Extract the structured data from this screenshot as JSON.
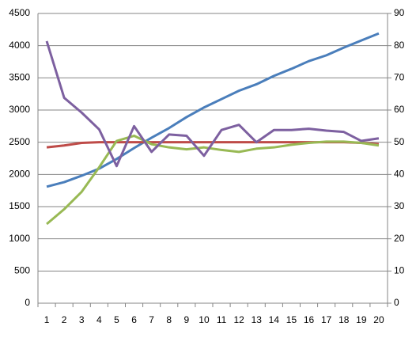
{
  "chart_data": {
    "type": "line",
    "categories": [
      1,
      2,
      3,
      4,
      5,
      6,
      7,
      8,
      9,
      10,
      11,
      12,
      13,
      14,
      15,
      16,
      17,
      18,
      19,
      20
    ],
    "ylim": [
      0,
      4500
    ],
    "yticks": [
      0,
      500,
      1000,
      1500,
      2000,
      2500,
      3000,
      3500,
      4000,
      4500
    ],
    "y2lim": [
      0,
      90
    ],
    "y2ticks": [
      0,
      10,
      20,
      30,
      40,
      50,
      60,
      70,
      80,
      90
    ],
    "grid": true,
    "series": [
      {
        "color": "#4a7ebb",
        "values": [
          1810,
          1880,
          1980,
          2090,
          2240,
          2410,
          2570,
          2720,
          2890,
          3040,
          3170,
          3300,
          3400,
          3530,
          3640,
          3760,
          3850,
          3970,
          4080,
          4190
        ]
      },
      {
        "color": "#be4b48",
        "values": [
          2420,
          2450,
          2490,
          2500,
          2500,
          2500,
          2500,
          2500,
          2500,
          2500,
          2500,
          2500,
          2500,
          2500,
          2500,
          2500,
          2500,
          2500,
          2490,
          2470
        ]
      },
      {
        "color": "#98b954",
        "axis": "y2",
        "values": [
          24.6,
          29.2,
          34.6,
          42.2,
          50.4,
          52,
          49.4,
          48.4,
          47.8,
          48.4,
          47.6,
          47,
          48,
          48.4,
          49.2,
          49.8,
          50.2,
          50.2,
          49.8,
          49
        ]
      },
      {
        "color": "#7d60a0",
        "axis": "y2",
        "values": [
          81.4,
          63.8,
          59.2,
          54,
          42.6,
          55,
          47,
          52.4,
          52,
          45.8,
          53.8,
          55.4,
          50,
          53.8,
          53.8,
          54.2,
          53.6,
          53.2,
          50.4,
          51.2
        ]
      }
    ]
  }
}
